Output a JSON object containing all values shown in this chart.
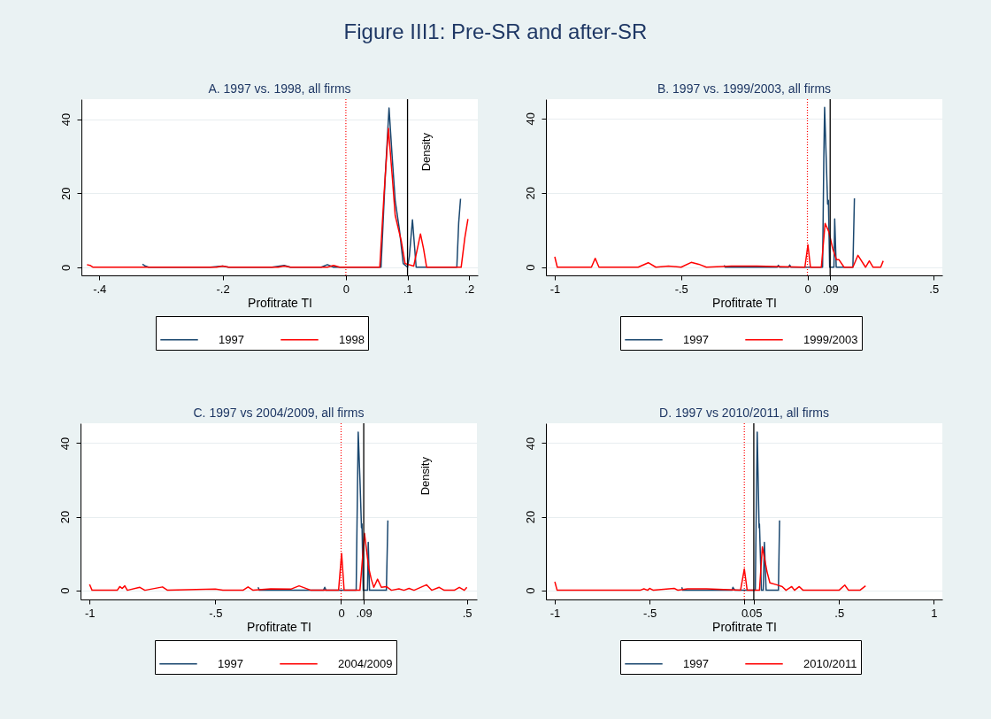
{
  "chart_data": [
    {
      "type": "other",
      "title": "Figure III1: Pre-SR and after-SR"
    },
    {
      "type": "line",
      "title": "A. 1997 vs. 1998, all firms",
      "xlabel": "Profitrate TI",
      "annotations": [
        "Density"
      ],
      "xlim": [
        -0.429,
        0.214
      ],
      "ylim": [
        -2.2,
        45.4
      ],
      "xticks": [
        {
          "value": -0.4,
          "label": "-.4"
        },
        {
          "value": -0.2,
          "label": "-.2"
        },
        0,
        {
          "value": 0.1,
          "label": ".1"
        },
        {
          "value": 0.2,
          "label": ".2"
        }
      ],
      "yticks": [
        0,
        20,
        40
      ],
      "grid": "y",
      "legend": "bottom",
      "ref_lines": [
        {
          "axis": "x",
          "value": 0,
          "color": "#ff0000",
          "line_style": "dotted"
        },
        {
          "axis": "x",
          "value": 0.1,
          "color": "#000000",
          "line_style": "solid"
        }
      ],
      "series": [
        {
          "name": "1997",
          "color": "#1a476f",
          "x": [
            -0.33,
            -0.325,
            -0.32,
            -0.22,
            -0.2,
            -0.19,
            -0.12,
            -0.1,
            -0.09,
            -0.04,
            -0.03,
            -0.02,
            0,
            0.057,
            0.064,
            0.07,
            0.075,
            0.08,
            0.087,
            0.093,
            0.1,
            0.103,
            0.108,
            0.114,
            0.18,
            0.183,
            0.186
          ],
          "values": [
            0.8,
            0.3,
            0,
            0,
            0.3,
            0,
            0,
            0.5,
            0,
            0,
            0.7,
            0,
            0,
            0,
            25,
            43,
            30,
            18,
            10,
            1,
            0,
            3,
            12.8,
            0,
            0,
            12,
            18.5
          ]
        },
        {
          "name": "1998",
          "color": "#ff0000",
          "x": [
            -0.42,
            -0.415,
            -0.41,
            -0.21,
            -0.2,
            -0.19,
            -0.11,
            -0.1,
            -0.09,
            -0.03,
            -0.02,
            -0.01,
            0.055,
            0.062,
            0.069,
            0.075,
            0.08,
            0.09,
            0.096,
            0.11,
            0.116,
            0.121,
            0.126,
            0.131,
            0.187,
            0.193,
            0.198
          ],
          "values": [
            0.7,
            0.5,
            0,
            0,
            0.3,
            0,
            0,
            0.3,
            0,
            0,
            0.5,
            0,
            0,
            20,
            37.5,
            25,
            14,
            7,
            1,
            0.3,
            5,
            9,
            5,
            0,
            0,
            8,
            13
          ]
        }
      ]
    },
    {
      "type": "line",
      "title": "B. 1997 vs. 1999/2003, all firms",
      "xlabel": "Profitrate TI",
      "xlim": [
        -1.035,
        0.534
      ],
      "ylim": [
        -2.2,
        45.2
      ],
      "xticks": [
        -1,
        {
          "value": -0.5,
          "label": "-.5"
        },
        0,
        {
          "value": 0.09,
          "label": ".09"
        },
        {
          "value": 0.5,
          "label": ".5"
        }
      ],
      "yticks": [
        0,
        20,
        40
      ],
      "grid": "y",
      "legend": "bottom",
      "ref_lines": [
        {
          "axis": "x",
          "value": 0,
          "color": "#ff0000",
          "line_style": "dotted"
        },
        {
          "axis": "x",
          "value": 0.09,
          "color": "#000000",
          "line_style": "solid"
        }
      ],
      "series": [
        {
          "name": "1997",
          "color": "#1a476f",
          "x": [
            -0.33,
            -0.325,
            -0.12,
            -0.115,
            -0.11,
            -0.075,
            -0.07,
            -0.065,
            0.06,
            0.065,
            0.068,
            0.074,
            0.08,
            0.083,
            0.088,
            0.105,
            0.108,
            0.114,
            0.18,
            0.186
          ],
          "values": [
            0.5,
            0,
            0,
            0.5,
            0,
            0,
            0.6,
            0,
            0,
            30,
            43,
            30,
            17,
            18,
            0,
            0,
            13,
            0,
            0,
            18.5
          ]
        },
        {
          "name": "1999/2003",
          "color": "#ff0000",
          "x": [
            -1,
            -0.99,
            -0.855,
            -0.84,
            -0.825,
            -0.67,
            -0.63,
            -0.6,
            -0.55,
            -0.5,
            -0.46,
            -0.43,
            -0.4,
            -0.3,
            -0.2,
            -0.01,
            0.002,
            0.012,
            0.055,
            0.07,
            0.085,
            0.1,
            0.115,
            0.125,
            0.145,
            0.18,
            0.2,
            0.23,
            0.245,
            0.26,
            0.29,
            0.3
          ],
          "values": [
            2.8,
            0,
            0,
            2.4,
            0,
            0,
            1.2,
            0,
            0.3,
            0,
            1.3,
            0.8,
            0,
            0.3,
            0.3,
            0,
            6,
            0,
            0,
            11.8,
            9.5,
            5,
            2,
            2,
            0,
            0,
            3.2,
            0,
            1.7,
            0,
            0,
            1.7
          ]
        }
      ]
    },
    {
      "type": "line",
      "title": "C. 1997 vs 2004/2009, all firms",
      "xlabel": "Profitrate TI",
      "annotations": [
        "Density"
      ],
      "xlim": [
        -1.036,
        0.54
      ],
      "ylim": [
        -2.5,
        45.4
      ],
      "xticks": [
        -1,
        {
          "value": -0.5,
          "label": "-.5"
        },
        0,
        {
          "value": 0.09,
          "label": ".09"
        },
        {
          "value": 0.5,
          "label": ".5"
        }
      ],
      "yticks": [
        0,
        20,
        40
      ],
      "grid": "y",
      "legend": "bottom",
      "ref_lines": [
        {
          "axis": "x",
          "value": 0,
          "color": "#ff0000",
          "line_style": "dotted"
        },
        {
          "axis": "x",
          "value": 0.09,
          "color": "#000000",
          "line_style": "solid"
        }
      ],
      "series": [
        {
          "name": "1997",
          "color": "#1a476f",
          "x": [
            -0.33,
            -0.325,
            -0.07,
            -0.065,
            -0.06,
            0.06,
            0.068,
            0.075,
            0.081,
            0.083,
            0.088,
            0.105,
            0.108,
            0.113,
            0.18,
            0.186
          ],
          "values": [
            0.8,
            0,
            0,
            0.8,
            0,
            0,
            43,
            30,
            17,
            18,
            0,
            0,
            13,
            0,
            0,
            19
          ]
        },
        {
          "name": "2004/2009",
          "color": "#ff0000",
          "x": [
            -1,
            -0.99,
            -0.89,
            -0.88,
            -0.87,
            -0.86,
            -0.85,
            -0.8,
            -0.78,
            -0.71,
            -0.69,
            -0.5,
            -0.47,
            -0.39,
            -0.37,
            -0.35,
            -0.28,
            -0.2,
            -0.167,
            -0.12,
            -0.01,
            0.002,
            0.012,
            0.075,
            0.093,
            0.11,
            0.12,
            0.13,
            0.145,
            0.16,
            0.18,
            0.2,
            0.23,
            0.25,
            0.27,
            0.29,
            0.34,
            0.36,
            0.39,
            0.41,
            0.45,
            0.47,
            0.49,
            0.5
          ],
          "values": [
            1.6,
            0,
            0,
            1,
            0.5,
            1.2,
            0,
            0.8,
            0,
            0.9,
            0,
            0.3,
            0,
            0,
            0.9,
            0,
            0.4,
            0.3,
            1.2,
            0,
            0,
            10,
            0,
            0,
            15.5,
            6,
            3,
            0.8,
            3,
            0.8,
            1,
            0,
            0.4,
            0,
            0.5,
            0,
            1.5,
            0,
            0.8,
            0,
            0,
            0.8,
            0,
            0.8
          ]
        }
      ]
    },
    {
      "type": "line",
      "title": "D. 1997 vs 2010/2011, all firms",
      "xlabel": "Profitrate TI",
      "xlim": [
        -1.047,
        1.045
      ],
      "ylim": [
        -2.5,
        45.4
      ],
      "xticks": [
        -1,
        {
          "value": -0.5,
          "label": "-.5"
        },
        0,
        {
          "value": 0.05,
          "label": ".05"
        },
        {
          "value": 0.5,
          "label": ".5"
        },
        1
      ],
      "yticks": [
        0,
        20,
        40
      ],
      "grid": "y",
      "legend": "bottom",
      "ref_lines": [
        {
          "axis": "x",
          "value": 0,
          "color": "#ff0000",
          "line_style": "dotted"
        },
        {
          "axis": "x",
          "value": 0.05,
          "color": "#000000",
          "line_style": "solid"
        }
      ],
      "series": [
        {
          "name": "1997",
          "color": "#1a476f",
          "x": [
            -0.33,
            -0.325,
            -0.065,
            -0.06,
            -0.05,
            0.058,
            0.068,
            0.078,
            0.08,
            0.09,
            0.1,
            0.106,
            0.115,
            0.18,
            0.186
          ],
          "values": [
            0.8,
            0,
            0,
            0.8,
            0,
            0,
            43,
            17,
            18,
            0,
            0,
            13,
            0,
            0,
            19
          ]
        },
        {
          "name": "2010/2011",
          "color": "#ff0000",
          "x": [
            -1,
            -0.988,
            -0.55,
            -0.53,
            -0.51,
            -0.5,
            -0.48,
            -0.37,
            -0.35,
            -0.3,
            -0.2,
            -0.02,
            0,
            0.015,
            0.08,
            0.095,
            0.12,
            0.135,
            0.17,
            0.2,
            0.22,
            0.25,
            0.265,
            0.29,
            0.31,
            0.5,
            0.53,
            0.55,
            0.61,
            0.64
          ],
          "values": [
            2.3,
            0,
            0,
            0.4,
            0,
            0.5,
            0,
            0.5,
            0,
            0.4,
            0.4,
            0,
            5.8,
            0,
            0,
            11.8,
            5,
            2,
            1.5,
            1,
            0,
            1,
            0,
            1,
            0,
            0,
            1.4,
            0,
            0,
            1.2
          ]
        }
      ]
    }
  ]
}
